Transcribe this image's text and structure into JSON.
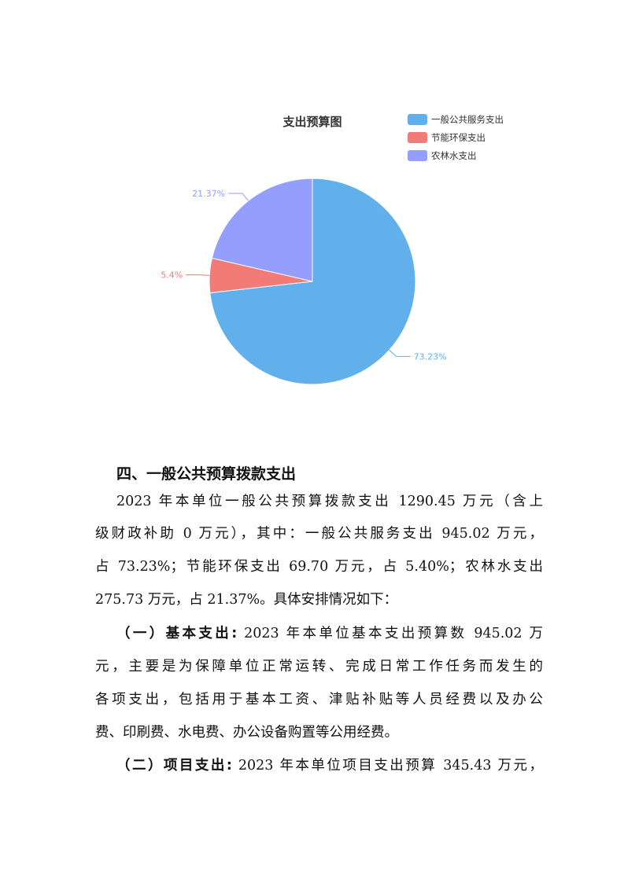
{
  "chart_data": {
    "type": "pie",
    "title": "支出预算图",
    "legend_position": "top-right",
    "categories": [
      "一般公共服务支出",
      "节能环保支出",
      "农林水支出"
    ],
    "values": [
      73.23,
      5.4,
      21.37
    ],
    "labels": [
      "73.23%",
      "5.4%",
      "21.37%"
    ],
    "colors": [
      "#62b0eb",
      "#f27b77",
      "#949efc"
    ]
  },
  "section": {
    "heading": "四、一般公共预算拨款支出",
    "para1": [
      "2023 年本单位一般公共预算拨款支出 1290.45 万元（含上",
      "级财政补助 0 万元），其中：一般公共服务支出 945.02 万元，",
      "占 73.23%；节能环保支出 69.70 万元，占 5.40%；农林水支出",
      "275.73 万元，占 21.37%。具体安排情况如下："
    ],
    "basic_label": "（一）基本支出:",
    "para2": [
      " 2023 年本单位基本支出预算数 945.02 万",
      "元，主要是为保障单位正常运转、完成日常工作任务而发生的",
      "各项支出，包括用于基本工资、津贴补贴等人员经费以及办公",
      "费、印刷费、水电费、办公设备购置等公用经费。"
    ],
    "project_label": "（二）项目支出:",
    "para3": [
      " 2023 年本单位项目支出预算 345.43 万元，"
    ]
  }
}
